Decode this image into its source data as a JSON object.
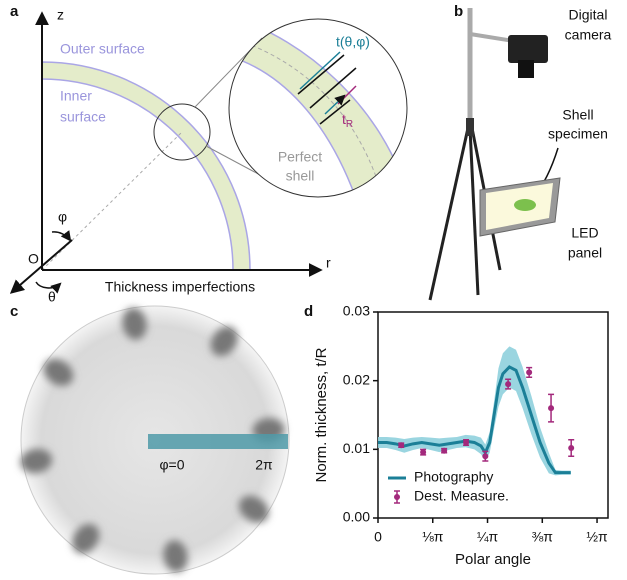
{
  "panels": {
    "a": {
      "label": "a",
      "z": "z",
      "r": "r",
      "origin": "O",
      "phi": "φ",
      "theta": "θ",
      "outer": "Outer surface",
      "inner": [
        "Inner",
        "surface"
      ],
      "thickness": "t(θ,φ)",
      "t_r": {
        "main": "t",
        "sub": "R"
      },
      "perfect": [
        "Perfect",
        "shell"
      ],
      "caption": "Thickness imperfections"
    },
    "b": {
      "label": "b",
      "camera": [
        "Digital",
        "camera"
      ],
      "specimen": [
        "Shell",
        "specimen"
      ],
      "panel": [
        "LED",
        "panel"
      ]
    },
    "c": {
      "label": "c",
      "start": "φ=0",
      "end": "2π"
    },
    "d": {
      "label": "d"
    }
  },
  "chart_data": {
    "type": "line",
    "xlabel": "Polar angle",
    "ylabel": "Norm. thickness, t/R",
    "xlim": [
      0,
      0.525
    ],
    "ylim": [
      0,
      0.03
    ],
    "xticks": [
      0,
      {
        "value": 0.125,
        "label": "⅛π"
      },
      {
        "value": 0.25,
        "label": "¼π"
      },
      {
        "value": 0.375,
        "label": "⅜π"
      },
      {
        "value": 0.5,
        "label": "½π"
      }
    ],
    "yticks": [
      {
        "value": 0,
        "label": "0.00"
      },
      0.01,
      0.02,
      0.03
    ],
    "legend": "lower-left",
    "series": [
      {
        "name": "Photography",
        "color": "#1b7f97",
        "band_color": "#8fd0dd",
        "x": [
          0,
          0.02,
          0.04,
          0.06,
          0.08,
          0.1,
          0.12,
          0.14,
          0.16,
          0.18,
          0.2,
          0.22,
          0.235,
          0.245,
          0.255,
          0.265,
          0.275,
          0.285,
          0.3,
          0.315,
          0.33,
          0.35,
          0.37,
          0.39,
          0.405,
          0.42,
          0.44
        ],
        "values": [
          0.011,
          0.011,
          0.0108,
          0.0105,
          0.0108,
          0.011,
          0.0108,
          0.0106,
          0.0108,
          0.011,
          0.0112,
          0.011,
          0.0105,
          0.0095,
          0.011,
          0.015,
          0.019,
          0.021,
          0.022,
          0.0215,
          0.019,
          0.015,
          0.011,
          0.008,
          0.0066,
          0.0066,
          0.0066
        ],
        "band": [
          0.0008,
          0.0008,
          0.0009,
          0.001,
          0.0009,
          0.0008,
          0.0009,
          0.001,
          0.0009,
          0.0008,
          0.0009,
          0.001,
          0.0012,
          0.0012,
          0.0015,
          0.002,
          0.0028,
          0.003,
          0.003,
          0.003,
          0.003,
          0.0028,
          0.0022,
          0.0015,
          0.0004,
          0.0003,
          0.0003
        ]
      },
      {
        "name": "Dest. Measure.",
        "color": "#a3297c",
        "x": [
          0.053,
          0.103,
          0.151,
          0.201,
          0.245,
          0.297,
          0.345,
          0.395,
          0.441
        ],
        "values": [
          0.0106,
          0.0096,
          0.0098,
          0.011,
          0.009,
          0.0195,
          0.0212,
          0.016,
          0.0102
        ],
        "errors": [
          0.0003,
          0.0004,
          0.0003,
          0.0004,
          0.0007,
          0.0007,
          0.0007,
          0.002,
          0.0012
        ]
      }
    ]
  }
}
